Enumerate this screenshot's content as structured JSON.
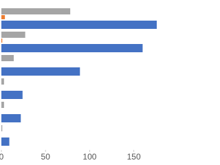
{
  "chart_data": {
    "type": "bar",
    "orientation": "horizontal",
    "categories": [
      null,
      null,
      null,
      null,
      null,
      null
    ],
    "series": [
      {
        "name": null,
        "color": "#a5a5a5",
        "values": [
          78,
          27,
          14,
          3,
          3,
          1
        ]
      },
      {
        "name": null,
        "color": "#ed7d31",
        "values": [
          4,
          1,
          0,
          0,
          0,
          0
        ]
      },
      {
        "name": null,
        "color": "#4472c4",
        "values": [
          178,
          160,
          89,
          24,
          22,
          9
        ]
      }
    ],
    "xlim": [
      0,
      176
    ],
    "xticks": [
      0,
      50,
      100,
      150
    ],
    "grid": false
  }
}
